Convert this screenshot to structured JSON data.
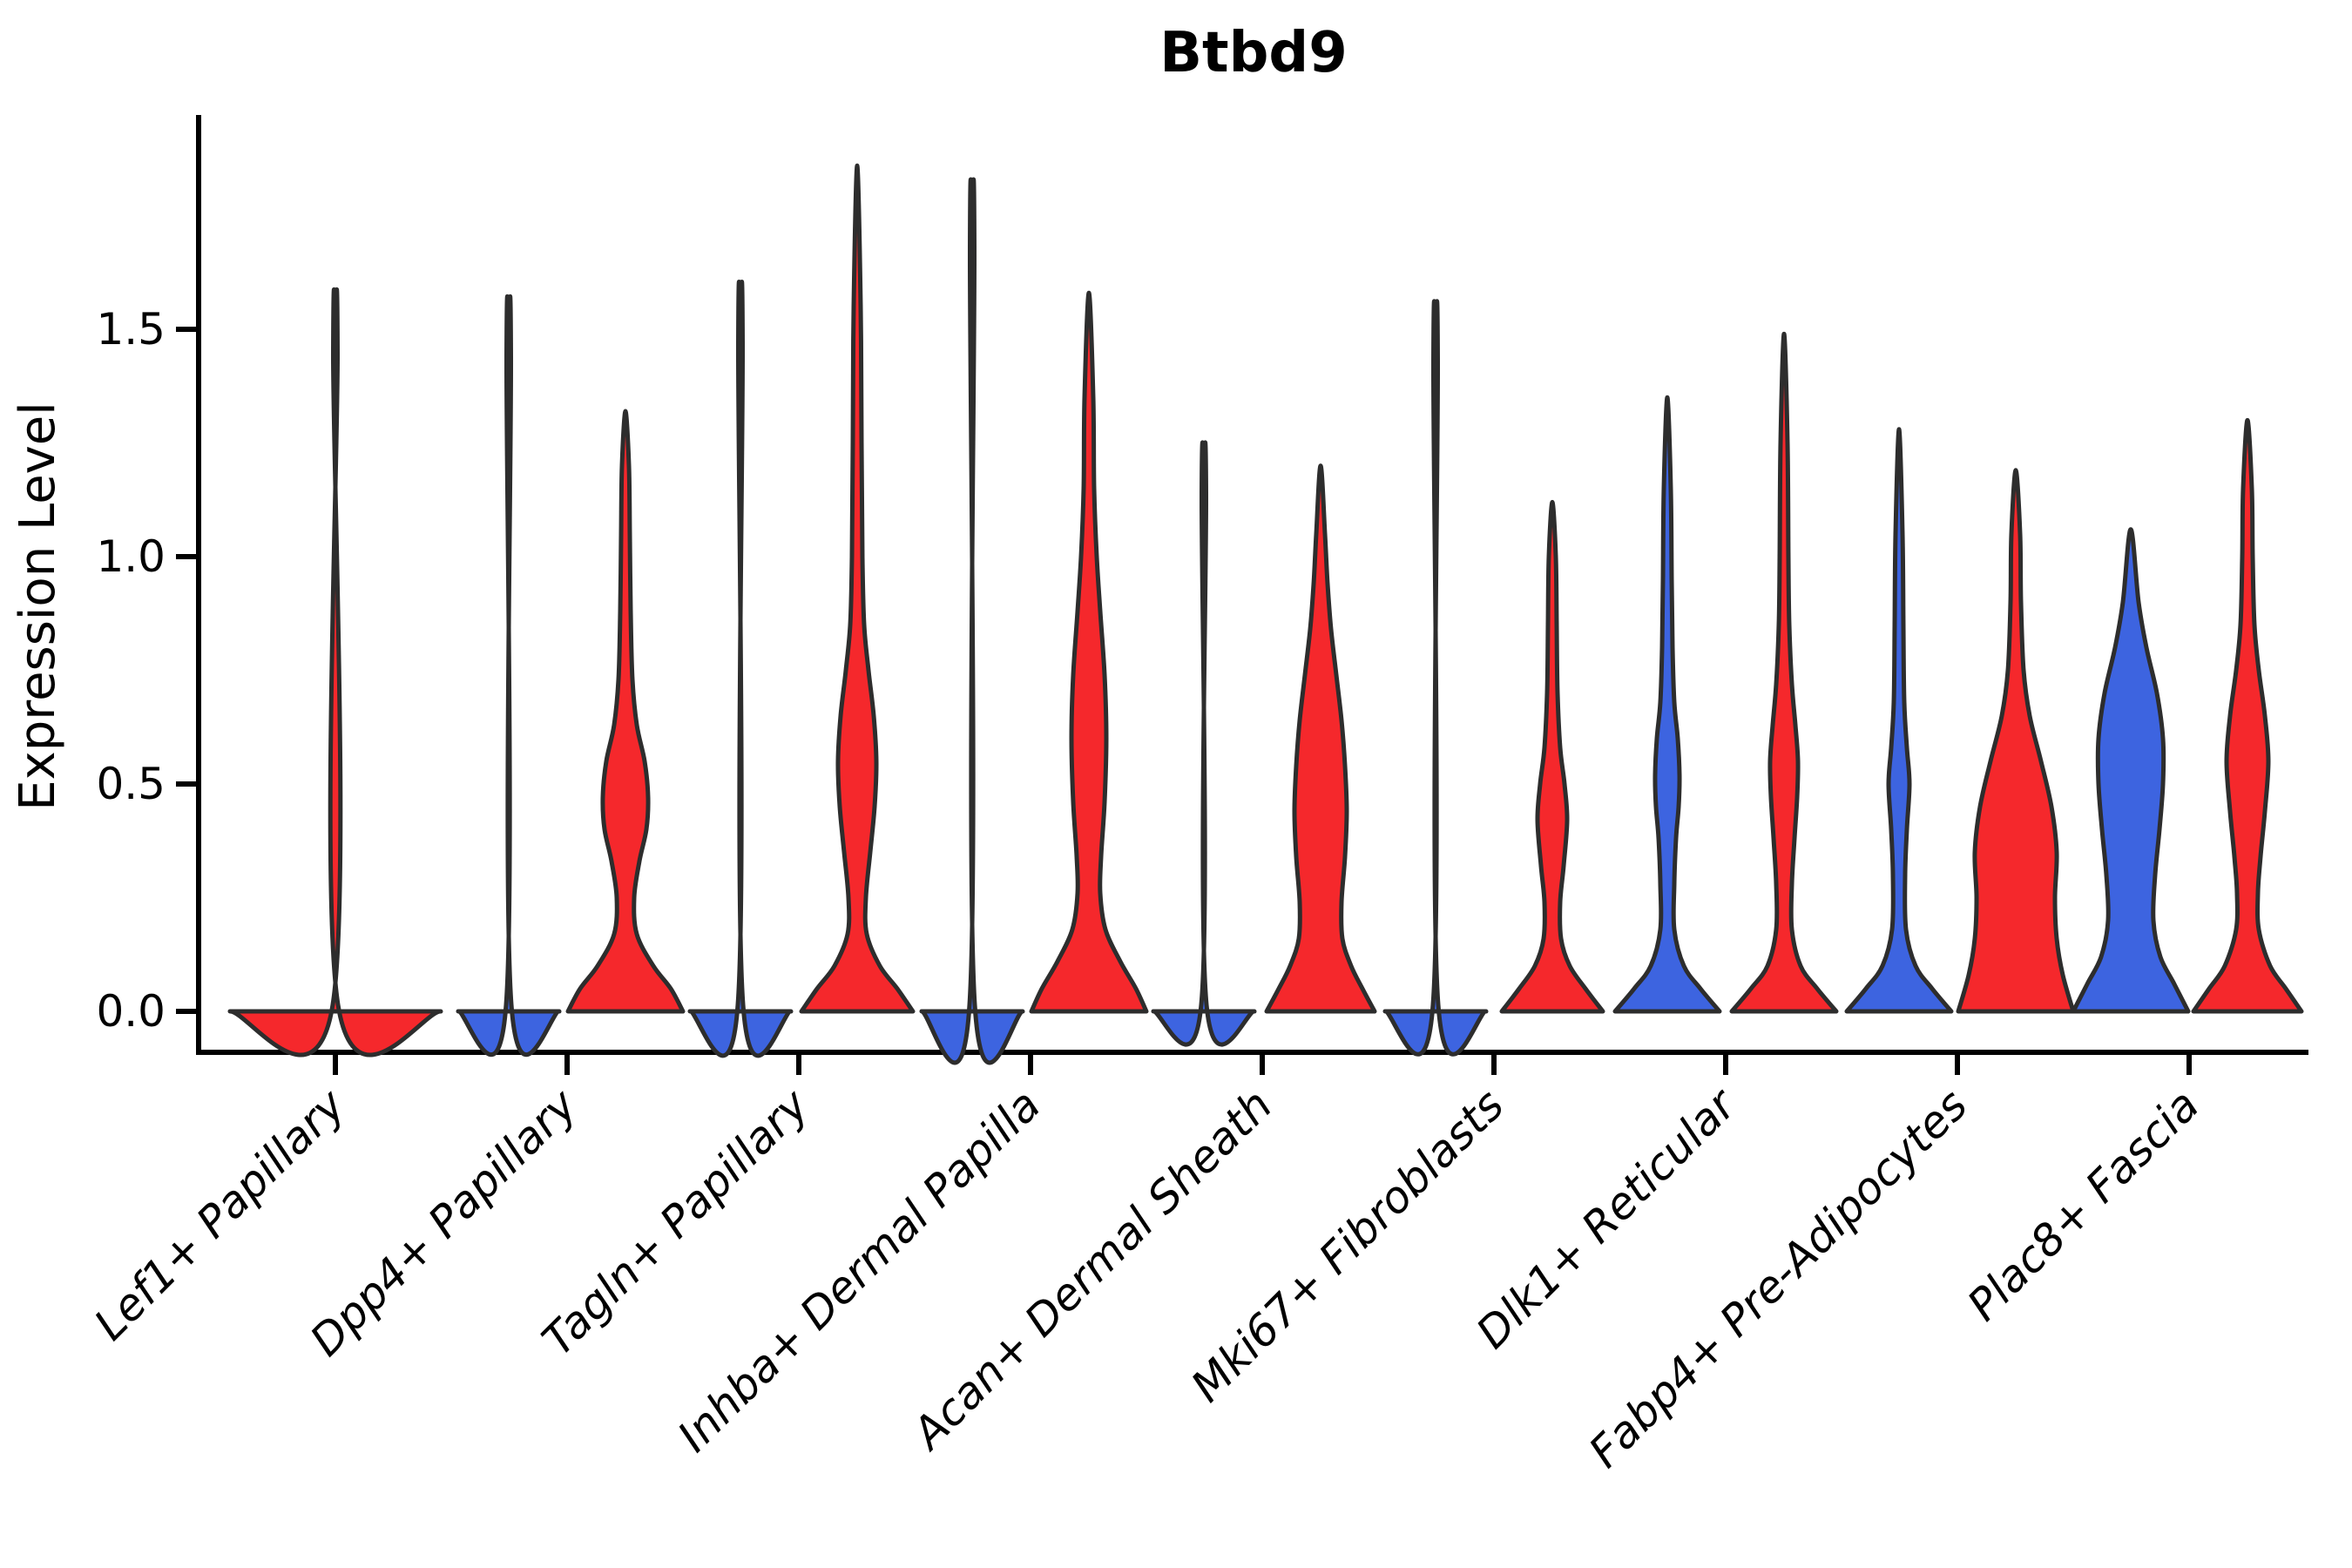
{
  "title": "Btbd9",
  "y_axis": {
    "label": "Expression Level",
    "tick_labels": [
      "0.0",
      "0.5",
      "1.0",
      "1.5"
    ],
    "tick_values": [
      0.0,
      0.5,
      1.0,
      1.5
    ]
  },
  "x_axis": {
    "categories": [
      "Lef1+ Papillary",
      "Dpp4+ Papillary",
      "Tagln+ Papillary",
      "Inhba+ Dermal Papilla",
      "Acan+ Dermal Sheath",
      "Mki67+ Fibroblasts",
      "Dlk1+ Reticular",
      "Fabp4+ Pre-Adipocytes",
      "Plac8+ Fascia"
    ]
  },
  "colors": {
    "group_blue": "#3D64E0",
    "group_red": "#F5282C",
    "violin_outline": "#2D2D2D",
    "axis": "#000000",
    "background": "#ffffff"
  },
  "chart_data": {
    "type": "violin",
    "title": "Btbd9",
    "ylabel": "Expression Level",
    "ylim": [
      0,
      1.97
    ],
    "grid": false,
    "legend": "none",
    "categories": [
      "Lef1+ Papillary",
      "Dpp4+ Papillary",
      "Tagln+ Papillary",
      "Inhba+ Dermal Papilla",
      "Acan+ Dermal Sheath",
      "Mki67+ Fibroblasts",
      "Dlk1+ Reticular",
      "Fabp4+ Pre-Adipocytes",
      "Plac8+ Fascia"
    ],
    "groups": [
      {
        "name": "group-blue",
        "color": "#3D64E0"
      },
      {
        "name": "group-red",
        "color": "#F5282C"
      }
    ],
    "violins": [
      {
        "category": "Lef1+ Papillary",
        "group": "red",
        "side": "center",
        "max_expression": 1.53,
        "profile": [
          [
            0,
            121
          ],
          [
            0.015,
            3
          ],
          [
            1.45,
            2.5
          ],
          [
            1.53,
            0
          ]
        ]
      },
      {
        "category": "Dpp4+ Papillary",
        "group": "blue",
        "side": "left",
        "max_expression": 1.51,
        "profile": [
          [
            0,
            58
          ],
          [
            0.015,
            3
          ],
          [
            1.44,
            2.5
          ],
          [
            1.51,
            0
          ]
        ]
      },
      {
        "category": "Dpp4+ Papillary",
        "group": "red",
        "side": "right",
        "max_expression": 1.32,
        "profile": [
          [
            0,
            66
          ],
          [
            0.05,
            52
          ],
          [
            0.1,
            32
          ],
          [
            0.17,
            13
          ],
          [
            0.25,
            10
          ],
          [
            0.33,
            16
          ],
          [
            0.4,
            24
          ],
          [
            0.47,
            26
          ],
          [
            0.55,
            22
          ],
          [
            0.63,
            13
          ],
          [
            0.73,
            8
          ],
          [
            0.88,
            6
          ],
          [
            1.05,
            5
          ],
          [
            1.2,
            4
          ],
          [
            1.32,
            0
          ]
        ]
      },
      {
        "category": "Tagln+ Papillary",
        "group": "blue",
        "side": "left",
        "max_expression": 1.54,
        "profile": [
          [
            0,
            58
          ],
          [
            0.015,
            3
          ],
          [
            1.47,
            2.5
          ],
          [
            1.54,
            0
          ]
        ]
      },
      {
        "category": "Tagln+ Papillary",
        "group": "red",
        "side": "right",
        "max_expression": 1.86,
        "profile": [
          [
            0,
            64
          ],
          [
            0.05,
            46
          ],
          [
            0.1,
            26
          ],
          [
            0.17,
            11
          ],
          [
            0.25,
            10
          ],
          [
            0.35,
            15
          ],
          [
            0.45,
            20
          ],
          [
            0.55,
            22
          ],
          [
            0.65,
            19
          ],
          [
            0.75,
            13
          ],
          [
            0.85,
            8
          ],
          [
            1.0,
            6
          ],
          [
            1.25,
            5
          ],
          [
            1.55,
            4
          ],
          [
            1.86,
            0
          ]
        ]
      },
      {
        "category": "Inhba+ Dermal Papilla",
        "group": "blue",
        "side": "left",
        "max_expression": 1.75,
        "profile": [
          [
            0,
            58
          ],
          [
            0.015,
            3
          ],
          [
            1.68,
            2.5
          ],
          [
            1.75,
            0
          ]
        ]
      },
      {
        "category": "Inhba+ Dermal Papilla",
        "group": "red",
        "side": "right",
        "max_expression": 1.58,
        "profile": [
          [
            0,
            66
          ],
          [
            0.05,
            54
          ],
          [
            0.11,
            36
          ],
          [
            0.18,
            19
          ],
          [
            0.26,
            13
          ],
          [
            0.34,
            14
          ],
          [
            0.46,
            18
          ],
          [
            0.6,
            20
          ],
          [
            0.74,
            18
          ],
          [
            0.88,
            13
          ],
          [
            1.0,
            9
          ],
          [
            1.15,
            6
          ],
          [
            1.35,
            5
          ],
          [
            1.58,
            0
          ]
        ]
      },
      {
        "category": "Acan+ Dermal Sheath",
        "group": "blue",
        "side": "left",
        "max_expression": 1.21,
        "profile": [
          [
            0,
            58
          ],
          [
            0.015,
            3
          ],
          [
            1.14,
            2.5
          ],
          [
            1.21,
            0
          ]
        ]
      },
      {
        "category": "Acan+ Dermal Sheath",
        "group": "red",
        "side": "right",
        "max_expression": 1.2,
        "profile": [
          [
            0,
            62
          ],
          [
            0.05,
            48
          ],
          [
            0.1,
            35
          ],
          [
            0.16,
            25
          ],
          [
            0.24,
            24
          ],
          [
            0.34,
            28
          ],
          [
            0.44,
            30
          ],
          [
            0.54,
            28
          ],
          [
            0.64,
            24
          ],
          [
            0.74,
            18
          ],
          [
            0.84,
            12
          ],
          [
            0.94,
            8
          ],
          [
            1.05,
            5
          ],
          [
            1.2,
            0
          ]
        ]
      },
      {
        "category": "Mki67+ Fibroblasts",
        "group": "blue",
        "side": "left",
        "max_expression": 1.5,
        "profile": [
          [
            0,
            58
          ],
          [
            0.015,
            3
          ],
          [
            1.43,
            2.5
          ],
          [
            1.5,
            0
          ]
        ]
      },
      {
        "category": "Mki67+ Fibroblasts",
        "group": "red",
        "side": "right",
        "max_expression": 1.12,
        "profile": [
          [
            0,
            58
          ],
          [
            0.05,
            38
          ],
          [
            0.1,
            20
          ],
          [
            0.16,
            10
          ],
          [
            0.24,
            9
          ],
          [
            0.32,
            13
          ],
          [
            0.42,
            17
          ],
          [
            0.5,
            14
          ],
          [
            0.58,
            9
          ],
          [
            0.7,
            6
          ],
          [
            0.85,
            5
          ],
          [
            1.0,
            4
          ],
          [
            1.12,
            0
          ]
        ]
      },
      {
        "category": "Dlk1+ Reticular",
        "group": "blue",
        "side": "left",
        "max_expression": 1.35,
        "profile": [
          [
            0,
            60
          ],
          [
            0.05,
            38
          ],
          [
            0.1,
            19
          ],
          [
            0.18,
            8
          ],
          [
            0.28,
            8
          ],
          [
            0.38,
            10
          ],
          [
            0.45,
            13
          ],
          [
            0.52,
            14
          ],
          [
            0.6,
            12
          ],
          [
            0.68,
            8
          ],
          [
            0.8,
            6
          ],
          [
            0.95,
            5
          ],
          [
            1.15,
            4
          ],
          [
            1.35,
            0
          ]
        ]
      },
      {
        "category": "Dlk1+ Reticular",
        "group": "red",
        "side": "right",
        "max_expression": 1.49,
        "profile": [
          [
            0,
            60
          ],
          [
            0.05,
            38
          ],
          [
            0.1,
            19
          ],
          [
            0.18,
            9
          ],
          [
            0.28,
            9
          ],
          [
            0.38,
            12
          ],
          [
            0.47,
            15
          ],
          [
            0.55,
            16
          ],
          [
            0.63,
            13
          ],
          [
            0.72,
            9
          ],
          [
            0.85,
            6
          ],
          [
            1.0,
            5
          ],
          [
            1.25,
            4
          ],
          [
            1.49,
            0
          ]
        ]
      },
      {
        "category": "Fabp4+ Pre-Adipocytes",
        "group": "blue",
        "side": "left",
        "max_expression": 1.28,
        "profile": [
          [
            0,
            60
          ],
          [
            0.05,
            38
          ],
          [
            0.1,
            19
          ],
          [
            0.18,
            8
          ],
          [
            0.3,
            7
          ],
          [
            0.4,
            9
          ],
          [
            0.5,
            12
          ],
          [
            0.58,
            9
          ],
          [
            0.68,
            6
          ],
          [
            0.85,
            5
          ],
          [
            1.05,
            4
          ],
          [
            1.28,
            0
          ]
        ]
      },
      {
        "category": "Fabp4+ Pre-Adipocytes",
        "group": "red",
        "side": "right",
        "max_expression": 1.19,
        "profile": [
          [
            0,
            66
          ],
          [
            0.08,
            54
          ],
          [
            0.16,
            47
          ],
          [
            0.25,
            45
          ],
          [
            0.35,
            47
          ],
          [
            0.45,
            41
          ],
          [
            0.55,
            29
          ],
          [
            0.65,
            16
          ],
          [
            0.75,
            9
          ],
          [
            0.9,
            6
          ],
          [
            1.05,
            5
          ],
          [
            1.19,
            0
          ]
        ]
      },
      {
        "category": "Plac8+ Fascia",
        "group": "blue",
        "side": "left",
        "max_expression": 1.06,
        "profile": [
          [
            0,
            66
          ],
          [
            0.06,
            50
          ],
          [
            0.12,
            34
          ],
          [
            0.2,
            26
          ],
          [
            0.3,
            28
          ],
          [
            0.4,
            33
          ],
          [
            0.5,
            37
          ],
          [
            0.6,
            37
          ],
          [
            0.7,
            30
          ],
          [
            0.8,
            18
          ],
          [
            0.9,
            9
          ],
          [
            1.06,
            0
          ]
        ]
      },
      {
        "category": "Plac8+ Fascia",
        "group": "red",
        "side": "right",
        "max_expression": 1.3,
        "profile": [
          [
            0,
            62
          ],
          [
            0.05,
            44
          ],
          [
            0.1,
            26
          ],
          [
            0.18,
            13
          ],
          [
            0.26,
            12
          ],
          [
            0.34,
            15
          ],
          [
            0.44,
            20
          ],
          [
            0.55,
            24
          ],
          [
            0.65,
            20
          ],
          [
            0.75,
            13
          ],
          [
            0.85,
            8
          ],
          [
            1.0,
            6
          ],
          [
            1.15,
            5
          ],
          [
            1.3,
            0
          ]
        ]
      }
    ]
  }
}
